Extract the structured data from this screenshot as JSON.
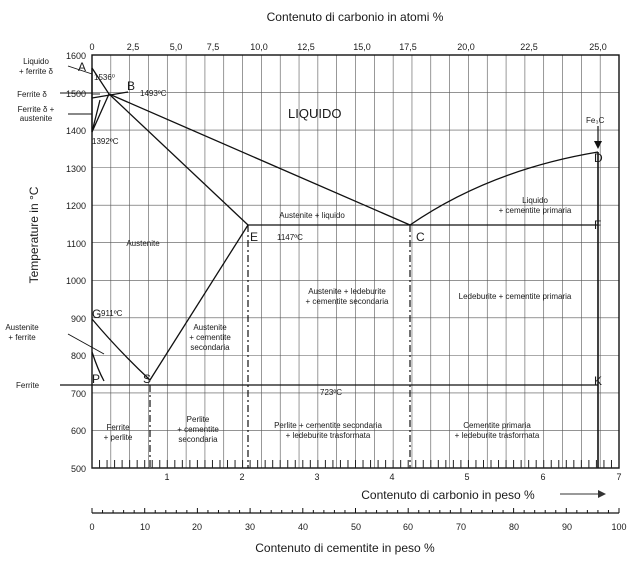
{
  "diagram": {
    "title_top": "Contenuto di carbonio in atomi %",
    "ylabel": "Temperature in °C",
    "xlabel_mass": "Contenuto di carbonio in peso %",
    "xlabel_cementite": "Contenuto di cementite in peso %",
    "atom_ticks": [
      "0",
      "2,5",
      "5,0",
      "7,5",
      "10,0",
      "12,5",
      "15,0",
      "17,5",
      "20,0",
      "22,5",
      "25,0"
    ],
    "temp_ticks": [
      "1600",
      "1500",
      "1400",
      "1300",
      "1200",
      "1100",
      "1000",
      "900",
      "800",
      "700",
      "600",
      "500"
    ],
    "mass_ticks": [
      "1",
      "2",
      "3",
      "4",
      "5",
      "6",
      "7"
    ],
    "cementite_ticks": [
      "0",
      "10",
      "20",
      "30",
      "40",
      "50",
      "60",
      "70",
      "80",
      "90",
      "100"
    ],
    "points": {
      "A": "A",
      "B": "B",
      "C": "C",
      "D": "D",
      "E": "E",
      "F": "F",
      "G": "G",
      "K": "K",
      "P": "P",
      "S": "S",
      "Fe3C": "Fe₃C"
    },
    "temps": {
      "t1536": "1536⁰",
      "t1493": "1493ºC",
      "t1392": "1392ºC",
      "t1147": "1147ºC",
      "t911": "911ºC",
      "t723": "723ºC"
    },
    "regions": {
      "liquido": "LIQUIDO",
      "liquido_ferrite_1": "Liquido",
      "liquido_ferrite_2": "+ ferrite δ",
      "ferrite_delta": "Ferrite δ",
      "ferrite_aust_1": "Ferrite δ +",
      "ferrite_aust_2": "austenite",
      "austenite_liquido": "Austenite + liquido",
      "austenite": "Austenite",
      "liq_cem_1": "Liquido",
      "liq_cem_2": "+ cementite primaria",
      "aust_led_1": "Austenite + ledeburite",
      "aust_led_2": "+ cementite secondaria",
      "led_cem": "Ledeburite + cementite primaria",
      "aust_ferrite_1": "Austenite",
      "aust_ferrite_2": "+ ferrite",
      "aust_cem_1": "Austenite",
      "aust_cem_2": "+ cementite",
      "aust_cem_3": "secondaria",
      "ferrite": "Ferrite",
      "ferrite_perlite_1": "Ferrite",
      "ferrite_perlite_2": "+ perlite",
      "perlite_cem_1": "Perlite",
      "perlite_cem_2": "+ cementite",
      "perlite_cem_3": "secondaria",
      "perlite_led_1": "Perlite + cementite secondaria",
      "perlite_led_2": "+ ledeburite trasformata",
      "cem_led_1": "Cementite primaria",
      "cem_led_2": "+ ledeburite trasformata"
    }
  }
}
